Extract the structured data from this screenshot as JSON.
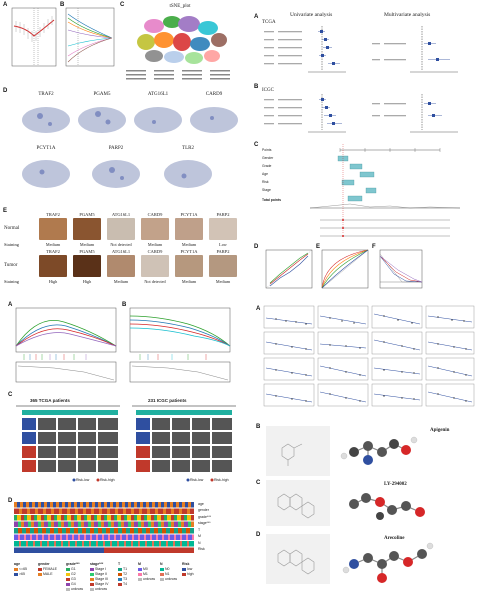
{
  "panels": {
    "top_left": {
      "labels": [
        "A",
        "B",
        "C",
        "D",
        "E"
      ],
      "tsne_title": "tSNE_plot",
      "d_genes_row1": [
        "TRAF2",
        "PGAM5",
        "ATG16L1",
        "CARD9"
      ],
      "d_genes_row2": [
        "PCYT1A",
        "PARP2",
        "TLR2"
      ],
      "ihc": {
        "genes_normal": [
          "TRAF2",
          "PGAM5",
          "ATG16L1",
          "CARD9",
          "PCYT1A",
          "PARP2"
        ],
        "normal_label": "Normal",
        "staining_label": "Staining",
        "normal_staining": [
          "Medium",
          "Medium",
          "Not detected",
          "Medium",
          "Medium",
          "Low"
        ],
        "genes_tumor": [
          "TRAF2",
          "PGAM5",
          "ATG16L1",
          "CARD9",
          "PCYT1A",
          "PARP2"
        ],
        "tumor_label": "Tumor",
        "tumor_staining": [
          "High",
          "High",
          "Medium",
          "Not detected",
          "Medium",
          "Medium"
        ]
      }
    },
    "top_right": {
      "labels": [
        "A",
        "B",
        "C",
        "D",
        "E",
        "F"
      ],
      "uni_title": "Univariate analysis",
      "multi_title": "Multivariate analysis",
      "tcga_label": "TCGA",
      "icgc_label": "ICGC",
      "nomogram_rows": [
        "Points",
        "Gender",
        "Grade",
        "Age",
        "Risk",
        "Stage",
        "Total points"
      ]
    },
    "bottom_left": {
      "labels": [
        "A",
        "B",
        "C",
        "D"
      ],
      "tcga_patients": "365 TCGA patients",
      "icgc_patients": "231 ICGC patients",
      "legend_risk": [
        "Risk-low",
        "Risk-high"
      ],
      "track_labels": [
        "age",
        "gender",
        "grade***",
        "stage***",
        "T",
        "M",
        "N",
        "Risk"
      ],
      "legend": {
        "age": {
          "title": "age",
          "items": [
            "<=65",
            ">65"
          ]
        },
        "gender": {
          "title": "gender",
          "items": [
            "FEMALE",
            "MALE"
          ]
        },
        "grade": {
          "title": "grade***",
          "items": [
            "G1",
            "G2",
            "G3",
            "G4",
            "unknow"
          ]
        },
        "stage": {
          "title": "stage***",
          "items": [
            "Stage I",
            "Stage II",
            "Stage III",
            "Stage IV",
            "unknow"
          ]
        },
        "t": {
          "title": "T",
          "items": [
            "T1",
            "T2",
            "T3",
            "T4"
          ]
        },
        "m": {
          "title": "M",
          "items": [
            "M0",
            "M1",
            "unknow"
          ]
        },
        "n": {
          "title": "N",
          "items": [
            "N0",
            "N1",
            "unknow"
          ]
        },
        "risk": {
          "title": "Risk",
          "items": [
            "low",
            "high"
          ]
        }
      }
    },
    "bottom_right": {
      "labels": [
        "A",
        "B",
        "C",
        "D"
      ],
      "molecules": [
        "Apigenin",
        "LY-294002",
        "Arecoline"
      ]
    }
  },
  "colors": {
    "risk_low": "#2f4fa0",
    "risk_high": "#c0392b",
    "stage_bar": "#20b0a0",
    "accent_red": "#d62728"
  }
}
